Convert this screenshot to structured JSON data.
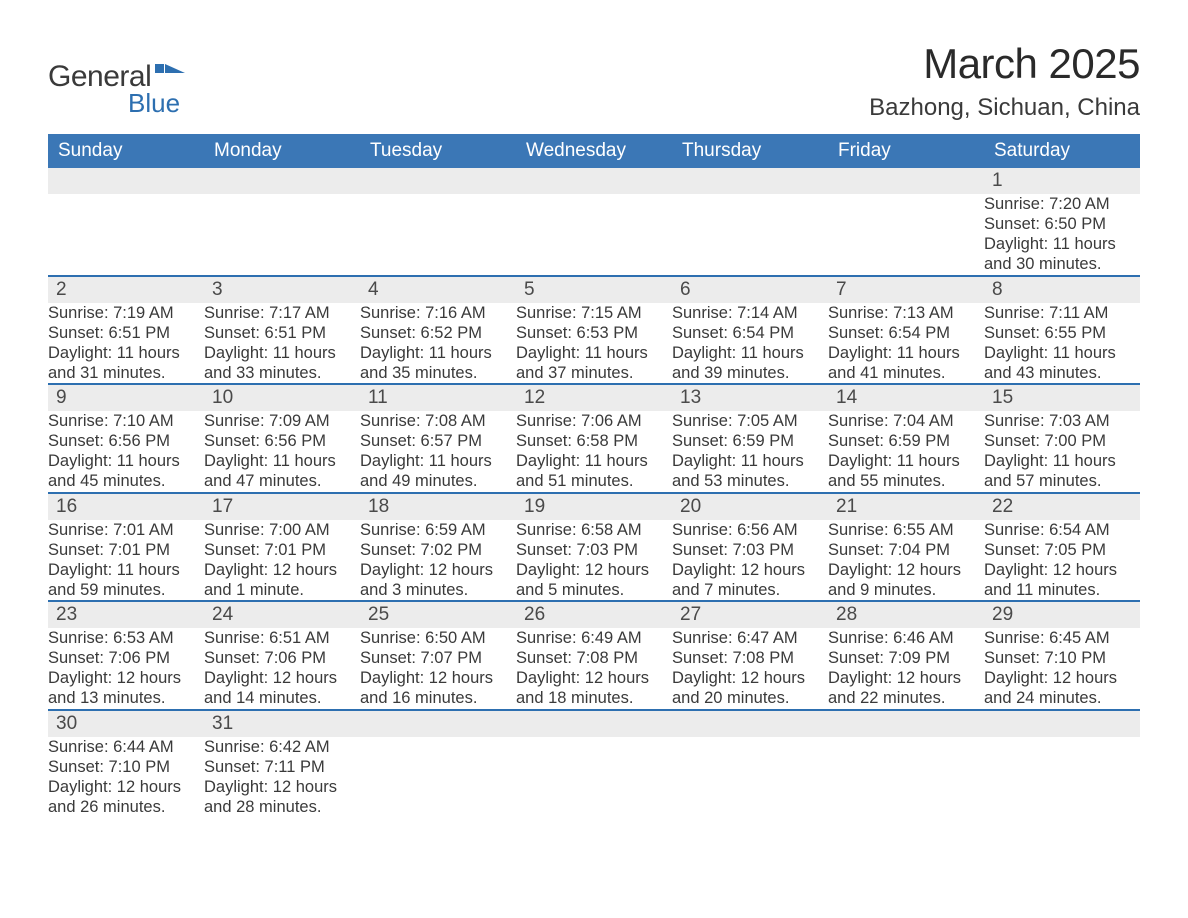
{
  "logo": {
    "text1": "General",
    "text2": "Blue",
    "mark_color": "#2d6fb0",
    "text1_color": "#3a3a3a"
  },
  "header": {
    "month_title": "March 2025",
    "location": "Bazhong, Sichuan, China"
  },
  "styling": {
    "header_bg": "#3b77b6",
    "header_text": "#ffffff",
    "row_divider": "#2d6fb0",
    "daynum_bg": "#ececec",
    "body_text": "#3a3a3a",
    "page_bg": "#ffffff",
    "title_fontsize": 42,
    "location_fontsize": 24,
    "weekday_fontsize": 19,
    "detail_fontsize": 16.5
  },
  "weekdays": [
    "Sunday",
    "Monday",
    "Tuesday",
    "Wednesday",
    "Thursday",
    "Friday",
    "Saturday"
  ],
  "weeks": [
    [
      null,
      null,
      null,
      null,
      null,
      null,
      {
        "day": "1",
        "sunrise": "7:20 AM",
        "sunset": "6:50 PM",
        "daylight": "11 hours and 30 minutes."
      }
    ],
    [
      {
        "day": "2",
        "sunrise": "7:19 AM",
        "sunset": "6:51 PM",
        "daylight": "11 hours and 31 minutes."
      },
      {
        "day": "3",
        "sunrise": "7:17 AM",
        "sunset": "6:51 PM",
        "daylight": "11 hours and 33 minutes."
      },
      {
        "day": "4",
        "sunrise": "7:16 AM",
        "sunset": "6:52 PM",
        "daylight": "11 hours and 35 minutes."
      },
      {
        "day": "5",
        "sunrise": "7:15 AM",
        "sunset": "6:53 PM",
        "daylight": "11 hours and 37 minutes."
      },
      {
        "day": "6",
        "sunrise": "7:14 AM",
        "sunset": "6:54 PM",
        "daylight": "11 hours and 39 minutes."
      },
      {
        "day": "7",
        "sunrise": "7:13 AM",
        "sunset": "6:54 PM",
        "daylight": "11 hours and 41 minutes."
      },
      {
        "day": "8",
        "sunrise": "7:11 AM",
        "sunset": "6:55 PM",
        "daylight": "11 hours and 43 minutes."
      }
    ],
    [
      {
        "day": "9",
        "sunrise": "7:10 AM",
        "sunset": "6:56 PM",
        "daylight": "11 hours and 45 minutes."
      },
      {
        "day": "10",
        "sunrise": "7:09 AM",
        "sunset": "6:56 PM",
        "daylight": "11 hours and 47 minutes."
      },
      {
        "day": "11",
        "sunrise": "7:08 AM",
        "sunset": "6:57 PM",
        "daylight": "11 hours and 49 minutes."
      },
      {
        "day": "12",
        "sunrise": "7:06 AM",
        "sunset": "6:58 PM",
        "daylight": "11 hours and 51 minutes."
      },
      {
        "day": "13",
        "sunrise": "7:05 AM",
        "sunset": "6:59 PM",
        "daylight": "11 hours and 53 minutes."
      },
      {
        "day": "14",
        "sunrise": "7:04 AM",
        "sunset": "6:59 PM",
        "daylight": "11 hours and 55 minutes."
      },
      {
        "day": "15",
        "sunrise": "7:03 AM",
        "sunset": "7:00 PM",
        "daylight": "11 hours and 57 minutes."
      }
    ],
    [
      {
        "day": "16",
        "sunrise": "7:01 AM",
        "sunset": "7:01 PM",
        "daylight": "11 hours and 59 minutes."
      },
      {
        "day": "17",
        "sunrise": "7:00 AM",
        "sunset": "7:01 PM",
        "daylight": "12 hours and 1 minute."
      },
      {
        "day": "18",
        "sunrise": "6:59 AM",
        "sunset": "7:02 PM",
        "daylight": "12 hours and 3 minutes."
      },
      {
        "day": "19",
        "sunrise": "6:58 AM",
        "sunset": "7:03 PM",
        "daylight": "12 hours and 5 minutes."
      },
      {
        "day": "20",
        "sunrise": "6:56 AM",
        "sunset": "7:03 PM",
        "daylight": "12 hours and 7 minutes."
      },
      {
        "day": "21",
        "sunrise": "6:55 AM",
        "sunset": "7:04 PM",
        "daylight": "12 hours and 9 minutes."
      },
      {
        "day": "22",
        "sunrise": "6:54 AM",
        "sunset": "7:05 PM",
        "daylight": "12 hours and 11 minutes."
      }
    ],
    [
      {
        "day": "23",
        "sunrise": "6:53 AM",
        "sunset": "7:06 PM",
        "daylight": "12 hours and 13 minutes."
      },
      {
        "day": "24",
        "sunrise": "6:51 AM",
        "sunset": "7:06 PM",
        "daylight": "12 hours and 14 minutes."
      },
      {
        "day": "25",
        "sunrise": "6:50 AM",
        "sunset": "7:07 PM",
        "daylight": "12 hours and 16 minutes."
      },
      {
        "day": "26",
        "sunrise": "6:49 AM",
        "sunset": "7:08 PM",
        "daylight": "12 hours and 18 minutes."
      },
      {
        "day": "27",
        "sunrise": "6:47 AM",
        "sunset": "7:08 PM",
        "daylight": "12 hours and 20 minutes."
      },
      {
        "day": "28",
        "sunrise": "6:46 AM",
        "sunset": "7:09 PM",
        "daylight": "12 hours and 22 minutes."
      },
      {
        "day": "29",
        "sunrise": "6:45 AM",
        "sunset": "7:10 PM",
        "daylight": "12 hours and 24 minutes."
      }
    ],
    [
      {
        "day": "30",
        "sunrise": "6:44 AM",
        "sunset": "7:10 PM",
        "daylight": "12 hours and 26 minutes."
      },
      {
        "day": "31",
        "sunrise": "6:42 AM",
        "sunset": "7:11 PM",
        "daylight": "12 hours and 28 minutes."
      },
      null,
      null,
      null,
      null,
      null
    ]
  ],
  "labels": {
    "sunrise": "Sunrise: ",
    "sunset": "Sunset: ",
    "daylight": "Daylight: "
  }
}
